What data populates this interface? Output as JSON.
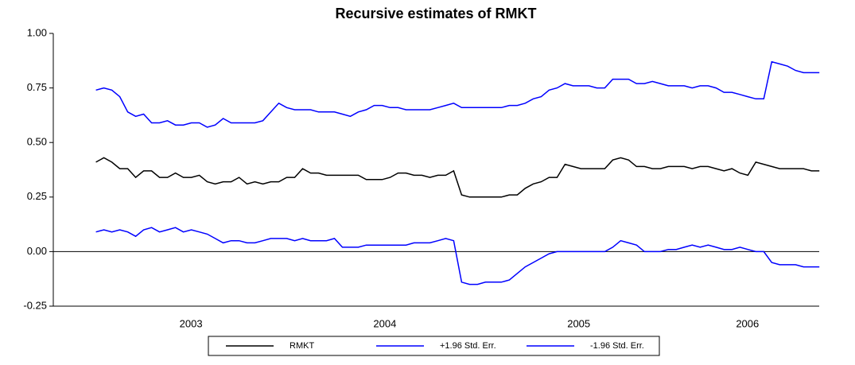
{
  "chart_data": {
    "type": "line",
    "title": "Recursive estimates of RMKT",
    "x": [
      2003.01,
      2003.051,
      2003.092,
      2003.133,
      2003.174,
      2003.215,
      2003.256,
      2003.297,
      2003.338,
      2003.379,
      2003.42,
      2003.461,
      2003.502,
      2003.543,
      2003.584,
      2003.625,
      2003.666,
      2003.707,
      2003.748,
      2003.789,
      2003.83,
      2003.871,
      2003.912,
      2003.953,
      2003.994,
      2004.035,
      2004.076,
      2004.117,
      2004.158,
      2004.199,
      2004.24,
      2004.281,
      2004.322,
      2004.363,
      2004.404,
      2004.445,
      2004.486,
      2004.527,
      2004.568,
      2004.609,
      2004.65,
      2004.691,
      2004.732,
      2004.773,
      2004.814,
      2004.855,
      2004.896,
      2004.937,
      2004.978,
      2005.019,
      2005.06,
      2005.101,
      2005.142,
      2005.183,
      2005.224,
      2005.265,
      2005.306,
      2005.347,
      2005.388,
      2005.429,
      2005.47,
      2005.511,
      2005.552,
      2005.593,
      2005.634,
      2005.675,
      2005.716,
      2005.757,
      2005.798,
      2005.839,
      2005.88,
      2005.921,
      2005.962,
      2006.003,
      2006.044,
      2006.085,
      2006.126,
      2006.167,
      2006.208,
      2006.249,
      2006.29,
      2006.331,
      2006.372,
      2006.413,
      2006.454,
      2006.495,
      2006.536,
      2006.577,
      2006.618,
      2006.659,
      2006.7,
      2006.741
    ],
    "series": [
      {
        "name": "RMKT",
        "color": "#000000",
        "values": [
          0.41,
          0.43,
          0.41,
          0.38,
          0.38,
          0.34,
          0.37,
          0.37,
          0.34,
          0.34,
          0.36,
          0.34,
          0.34,
          0.35,
          0.32,
          0.31,
          0.32,
          0.32,
          0.34,
          0.31,
          0.32,
          0.31,
          0.32,
          0.32,
          0.34,
          0.34,
          0.38,
          0.36,
          0.36,
          0.35,
          0.35,
          0.35,
          0.35,
          0.35,
          0.33,
          0.33,
          0.33,
          0.34,
          0.36,
          0.36,
          0.35,
          0.35,
          0.34,
          0.35,
          0.35,
          0.37,
          0.26,
          0.25,
          0.25,
          0.25,
          0.25,
          0.25,
          0.26,
          0.26,
          0.29,
          0.31,
          0.32,
          0.34,
          0.34,
          0.4,
          0.39,
          0.38,
          0.38,
          0.38,
          0.38,
          0.42,
          0.43,
          0.42,
          0.39,
          0.39,
          0.38,
          0.38,
          0.39,
          0.39,
          0.39,
          0.38,
          0.39,
          0.39,
          0.38,
          0.37,
          0.38,
          0.36,
          0.35,
          0.41,
          0.4,
          0.39,
          0.38,
          0.38,
          0.38,
          0.38,
          0.37,
          0.37
        ]
      },
      {
        "name": "+1.96 Std. Err.",
        "color": "#0000ff",
        "values": [
          0.74,
          0.75,
          0.74,
          0.71,
          0.64,
          0.62,
          0.63,
          0.59,
          0.59,
          0.6,
          0.58,
          0.58,
          0.59,
          0.59,
          0.57,
          0.58,
          0.61,
          0.59,
          0.59,
          0.59,
          0.59,
          0.6,
          0.64,
          0.68,
          0.66,
          0.65,
          0.65,
          0.65,
          0.64,
          0.64,
          0.64,
          0.63,
          0.62,
          0.64,
          0.65,
          0.67,
          0.67,
          0.66,
          0.66,
          0.65,
          0.65,
          0.65,
          0.65,
          0.66,
          0.67,
          0.68,
          0.66,
          0.66,
          0.66,
          0.66,
          0.66,
          0.66,
          0.67,
          0.67,
          0.68,
          0.7,
          0.71,
          0.74,
          0.75,
          0.77,
          0.76,
          0.76,
          0.76,
          0.75,
          0.75,
          0.79,
          0.79,
          0.79,
          0.77,
          0.77,
          0.78,
          0.77,
          0.76,
          0.76,
          0.76,
          0.75,
          0.76,
          0.76,
          0.75,
          0.73,
          0.73,
          0.72,
          0.71,
          0.7,
          0.7,
          0.87,
          0.86,
          0.85,
          0.83,
          0.82,
          0.82,
          0.82
        ]
      },
      {
        "name": "-1.96 Std. Err.",
        "color": "#0000ff",
        "values": [
          0.09,
          0.1,
          0.09,
          0.1,
          0.09,
          0.07,
          0.1,
          0.11,
          0.09,
          0.1,
          0.11,
          0.09,
          0.1,
          0.09,
          0.08,
          0.06,
          0.04,
          0.05,
          0.05,
          0.04,
          0.04,
          0.05,
          0.06,
          0.06,
          0.06,
          0.05,
          0.06,
          0.05,
          0.05,
          0.05,
          0.06,
          0.02,
          0.02,
          0.02,
          0.03,
          0.03,
          0.03,
          0.03,
          0.03,
          0.03,
          0.04,
          0.04,
          0.04,
          0.05,
          0.06,
          0.05,
          -0.14,
          -0.15,
          -0.15,
          -0.14,
          -0.14,
          -0.14,
          -0.13,
          -0.1,
          -0.07,
          -0.05,
          -0.03,
          -0.01,
          0.0,
          0.0,
          0.0,
          0.0,
          0.0,
          0.0,
          0.0,
          0.02,
          0.05,
          0.04,
          0.03,
          0.0,
          0.0,
          0.0,
          0.01,
          0.01,
          0.02,
          0.03,
          0.02,
          0.03,
          0.02,
          0.01,
          0.01,
          0.02,
          0.01,
          0.0,
          0.0,
          -0.05,
          -0.06,
          -0.06,
          -0.06,
          -0.07,
          -0.07,
          -0.07
        ]
      }
    ],
    "xlim": [
      2002.79,
      2006.74
    ],
    "xticks": [
      {
        "value": 2003.5,
        "label": "2003"
      },
      {
        "value": 2004.5,
        "label": "2004"
      },
      {
        "value": 2005.5,
        "label": "2005"
      },
      {
        "value": 2006.37,
        "label": "2006"
      }
    ],
    "ylim": [
      -0.25,
      1.0
    ],
    "yticks": [
      {
        "value": -0.25,
        "label": "-0.25"
      },
      {
        "value": 0,
        "label": "0.00"
      },
      {
        "value": 0.25,
        "label": "0.25"
      },
      {
        "value": 0.5,
        "label": "0.50"
      },
      {
        "value": 0.75,
        "label": "0.75"
      },
      {
        "value": 1.0,
        "label": "1.00"
      }
    ],
    "zero_line": true,
    "legend": "bottom"
  }
}
